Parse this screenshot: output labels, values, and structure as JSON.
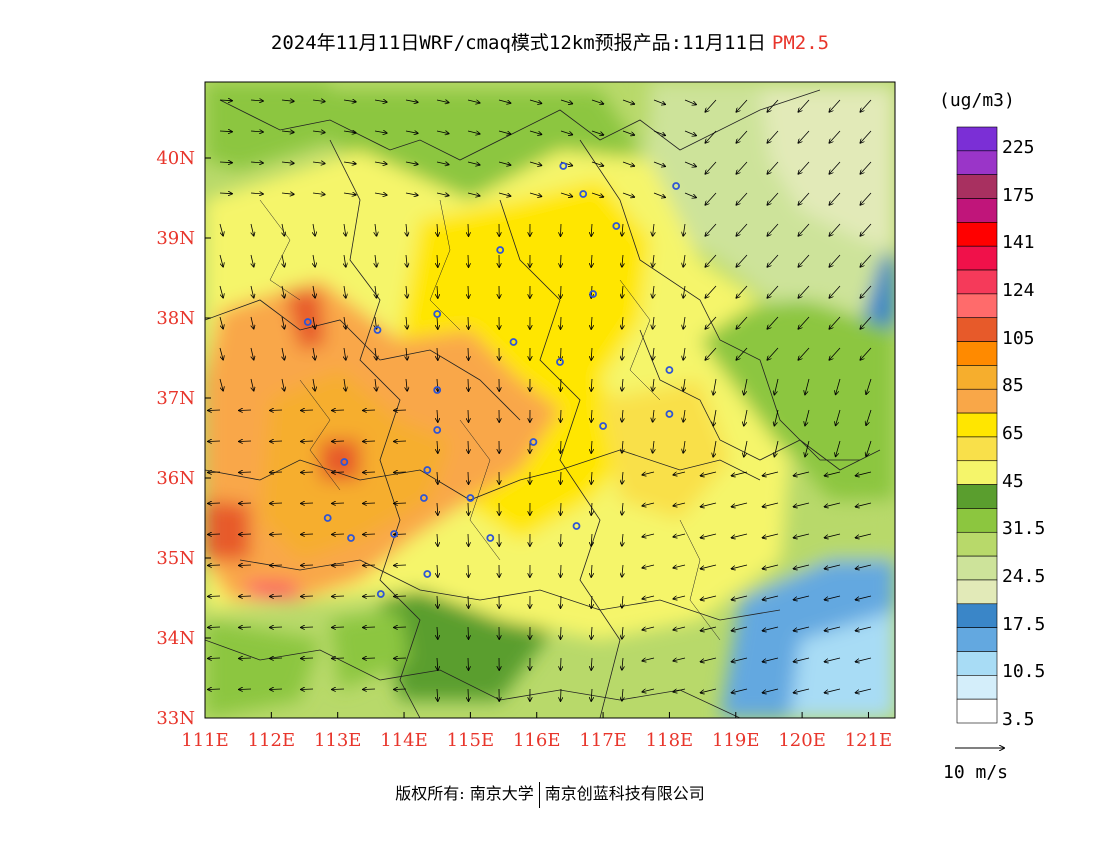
{
  "title": {
    "main": "2024年11月11日WRF/cmaq模式12km预报产品:11月11日",
    "pollutant": "PM2.5"
  },
  "units": "(ug/m3)",
  "legend": {
    "labels": [
      "225",
      "175",
      "141",
      "124",
      "105",
      "85",
      "65",
      "45",
      "31.5",
      "24.5",
      "17.5",
      "10.5",
      "3.5"
    ],
    "colors": [
      "#7b2fd6",
      "#9a35c8",
      "#a83060",
      "#c0157a",
      "#ff0000",
      "#f0114a",
      "#f53a5a",
      "#ff6b6b",
      "#e75a2a",
      "#ff8a00",
      "#f6ae2d",
      "#f9a748",
      "#ffe600",
      "#f9e04a",
      "#f5f56a",
      "#5a9e2e",
      "#8cc63f",
      "#b8d96a",
      "#cde39a",
      "#e2eab8",
      "#3a86c8",
      "#63a8e0",
      "#a8dcf5",
      "#d4eefa",
      "#ffffff"
    ]
  },
  "axes": {
    "x_ticks": [
      "111E",
      "112E",
      "113E",
      "114E",
      "115E",
      "116E",
      "117E",
      "118E",
      "119E",
      "120E",
      "121E"
    ],
    "y_ticks": [
      "33N",
      "34N",
      "35N",
      "36N",
      "37N",
      "38N",
      "39N",
      "40N"
    ]
  },
  "wind_scale": "10 m/s",
  "copyright": {
    "prefix": "版权所有:",
    "org1": "南京大学",
    "org2": "南京创蓝科技有限公司"
  },
  "colors": {
    "axis_text": "#e8352b",
    "station_marker": "#2f55d4"
  },
  "stations_lonlat": [
    [
      116.4,
      39.9
    ],
    [
      116.7,
      39.55
    ],
    [
      117.2,
      39.15
    ],
    [
      118.1,
      39.65
    ],
    [
      115.45,
      38.85
    ],
    [
      116.85,
      38.3
    ],
    [
      114.5,
      38.05
    ],
    [
      112.55,
      37.95
    ],
    [
      113.6,
      37.85
    ],
    [
      115.65,
      37.7
    ],
    [
      116.35,
      37.45
    ],
    [
      118.0,
      37.35
    ],
    [
      114.5,
      37.1
    ],
    [
      114.5,
      36.6
    ],
    [
      117.0,
      36.65
    ],
    [
      118.0,
      36.8
    ],
    [
      113.1,
      36.2
    ],
    [
      114.35,
      36.1
    ],
    [
      115.95,
      36.45
    ],
    [
      114.3,
      35.75
    ],
    [
      115.0,
      35.75
    ],
    [
      112.85,
      35.5
    ],
    [
      115.3,
      35.25
    ],
    [
      113.2,
      35.25
    ],
    [
      113.85,
      35.3
    ],
    [
      116.6,
      35.4
    ],
    [
      114.35,
      34.8
    ],
    [
      113.65,
      34.55
    ]
  ]
}
